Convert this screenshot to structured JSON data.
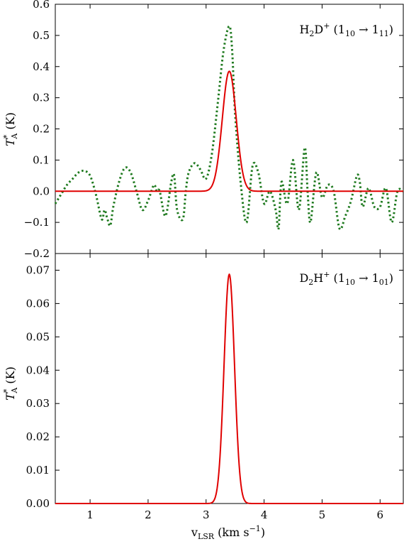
{
  "chart_data": [
    {
      "type": "line",
      "panel": "top",
      "annotation": {
        "mol_main": "H",
        "mol_sub1": "2",
        "mol_mid": "D",
        "mol_sup": "+",
        "open": " (1",
        "sub_a": "10",
        "arrow": " → 1",
        "sub_b": "11",
        "close": ")"
      },
      "ylabel": {
        "main": "T",
        "sup": "*",
        "sub": "A",
        "unit": " (K)"
      },
      "xlim": [
        0.4,
        6.4
      ],
      "ylim": [
        -0.2,
        0.6
      ],
      "yticks": [
        -0.2,
        -0.1,
        0.0,
        0.1,
        0.2,
        0.3,
        0.4,
        0.5,
        0.6
      ],
      "ytick_labels": [
        "−0.2",
        "−0.1",
        "0.0",
        "0.1",
        "0.2",
        "0.3",
        "0.4",
        "0.5",
        "0.6"
      ],
      "series": [
        {
          "style": "dotted-green",
          "color": "#1f7a1f",
          "x": [
            0.4,
            0.5,
            0.6,
            0.7,
            0.8,
            0.9,
            1.0,
            1.1,
            1.2,
            1.25,
            1.3,
            1.35,
            1.4,
            1.5,
            1.6,
            1.7,
            1.8,
            1.9,
            2.0,
            2.1,
            2.15,
            2.2,
            2.3,
            2.4,
            2.45,
            2.5,
            2.6,
            2.65,
            2.7,
            2.8,
            2.9,
            3.0,
            3.1,
            3.2,
            3.3,
            3.4,
            3.45,
            3.5,
            3.6,
            3.7,
            3.8,
            3.9,
            4.0,
            4.1,
            4.2,
            4.25,
            4.3,
            4.4,
            4.5,
            4.6,
            4.7,
            4.75,
            4.8,
            4.9,
            5.0,
            5.1,
            5.2,
            5.3,
            5.4,
            5.5,
            5.6,
            5.65,
            5.7,
            5.8,
            5.9,
            6.0,
            6.1,
            6.2,
            6.3,
            6.4
          ],
          "y": [
            -0.04,
            -0.01,
            0.02,
            0.04,
            0.06,
            0.065,
            0.05,
            -0.01,
            -0.09,
            -0.06,
            -0.09,
            -0.11,
            -0.05,
            0.03,
            0.075,
            0.06,
            0.0,
            -0.06,
            -0.03,
            0.02,
            0.0,
            0.0,
            -0.08,
            0.03,
            0.05,
            -0.06,
            -0.09,
            0.0,
            0.06,
            0.09,
            0.07,
            0.04,
            0.12,
            0.28,
            0.45,
            0.53,
            0.45,
            0.25,
            0.02,
            -0.1,
            0.08,
            0.06,
            -0.04,
            0.0,
            -0.06,
            -0.12,
            0.03,
            -0.04,
            0.1,
            -0.06,
            0.14,
            0.0,
            -0.1,
            0.06,
            -0.02,
            0.02,
            0.0,
            -0.12,
            -0.08,
            -0.03,
            0.05,
            0.03,
            -0.05,
            0.01,
            -0.05,
            -0.05,
            0.01,
            -0.1,
            0.0,
            0.0
          ]
        },
        {
          "style": "solid-red",
          "color": "#e00000",
          "gaussian": {
            "amplitude": 0.385,
            "center": 3.4,
            "sigma": 0.12
          }
        }
      ]
    },
    {
      "type": "line",
      "panel": "bottom",
      "annotation": {
        "mol_main": "D",
        "mol_sub1": "2",
        "mol_mid": "H",
        "mol_sup": "+",
        "open": " (1",
        "sub_a": "10",
        "arrow": " → 1",
        "sub_b": "01",
        "close": ")"
      },
      "ylabel": {
        "main": "T",
        "sup": "*",
        "sub": "A",
        "unit": " (K)"
      },
      "xlabel": {
        "main": "v",
        "sub": "LSR",
        "unit_open": " (km s",
        "unit_sup": "−1",
        "unit_close": ")"
      },
      "xlim": [
        0.4,
        6.4
      ],
      "ylim": [
        0.0,
        0.075
      ],
      "xticks": [
        1,
        2,
        3,
        4,
        5,
        6
      ],
      "xtick_labels": [
        "1",
        "2",
        "3",
        "4",
        "5",
        "6"
      ],
      "yticks": [
        0.0,
        0.01,
        0.02,
        0.03,
        0.04,
        0.05,
        0.06,
        0.07
      ],
      "ytick_labels": [
        "0.00",
        "0.01",
        "0.02",
        "0.03",
        "0.04",
        "0.05",
        "0.06",
        "0.07"
      ],
      "series": [
        {
          "style": "solid-red",
          "color": "#e00000",
          "gaussian": {
            "amplitude": 0.0688,
            "center": 3.4,
            "sigma": 0.09
          }
        }
      ]
    }
  ]
}
